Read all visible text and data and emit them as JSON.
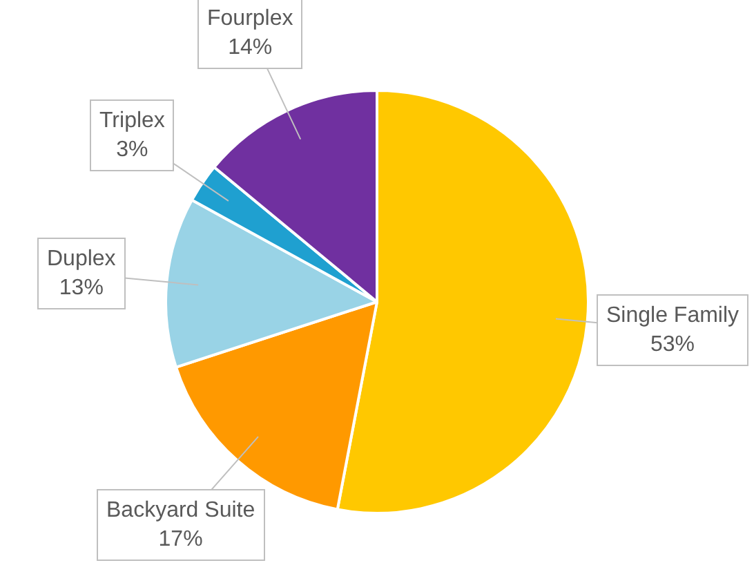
{
  "chart_data": {
    "type": "pie",
    "categories": [
      "Single Family",
      "Backyard Suite",
      "Duplex",
      "Triplex",
      "Fourplex"
    ],
    "values": [
      53,
      17,
      13,
      3,
      14
    ],
    "colors": [
      "#ffc800",
      "#ff9900",
      "#99d3e6",
      "#1fa0d0",
      "#7030a0"
    ],
    "value_labels": [
      "53%",
      "17%",
      "13%",
      "3%",
      "14%"
    ],
    "legend": false
  }
}
